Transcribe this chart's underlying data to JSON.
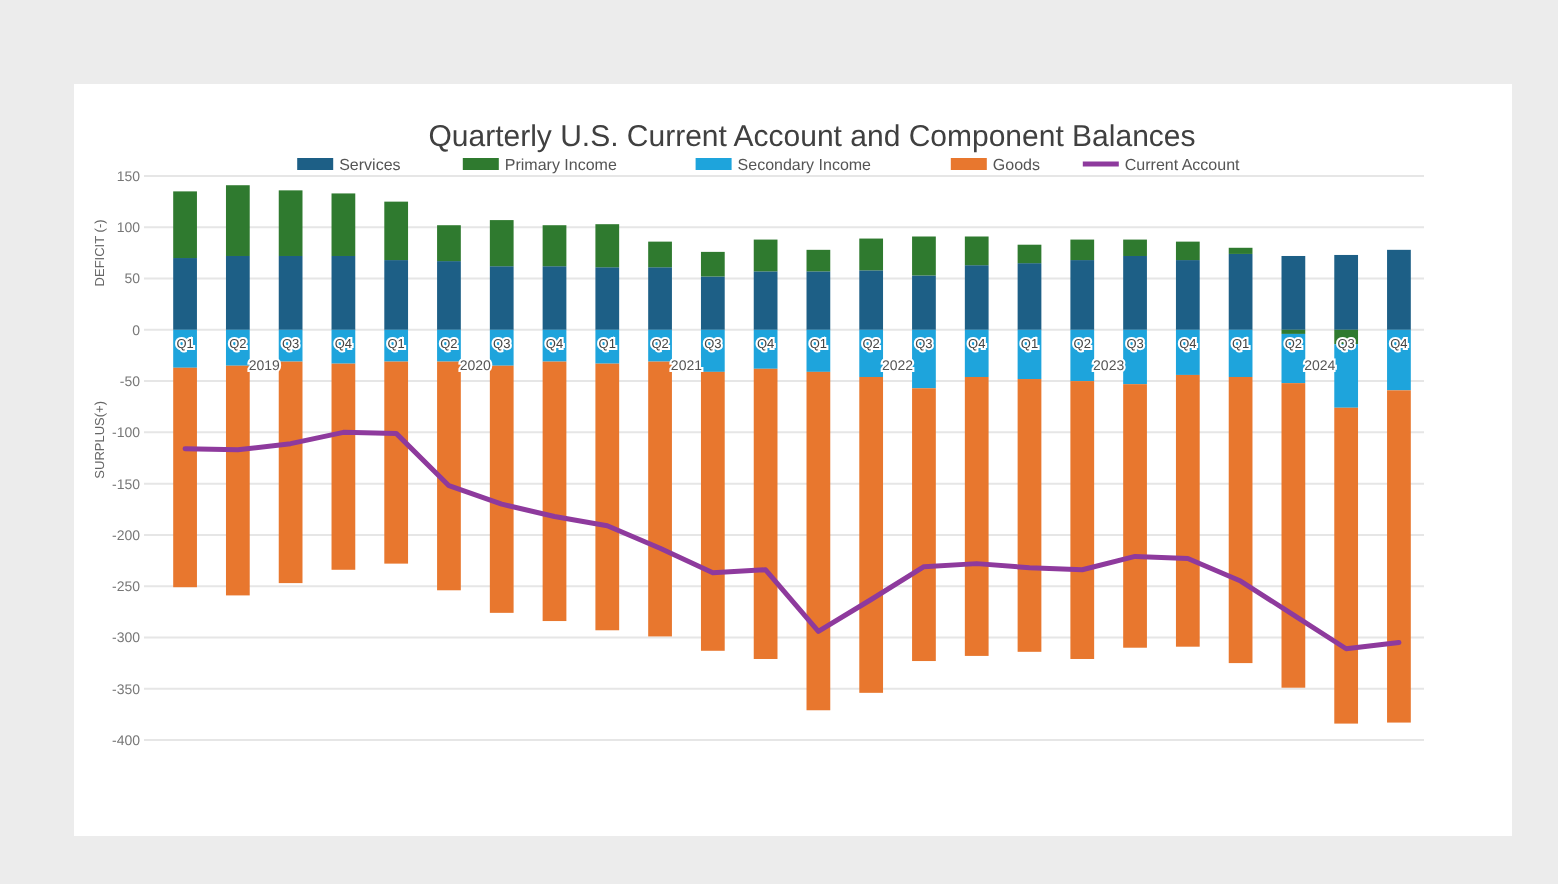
{
  "chart_data": {
    "type": "bar",
    "stacked": true,
    "title": "Quarterly U.S. Current Account and Component Balances",
    "ylabel": "DEFICIT (-)",
    "annotations": [
      "2019",
      "2020",
      "2021",
      "2022",
      "2023",
      "2024",
      "SURPLUS(+)"
    ],
    "categories": [
      "Q1",
      "Q2",
      "Q3",
      "Q4",
      "Q1",
      "Q2",
      "Q3",
      "Q4",
      "Q1",
      "Q2",
      "Q3",
      "Q4",
      "Q1",
      "Q2",
      "Q3",
      "Q4",
      "Q1",
      "Q2",
      "Q3",
      "Q4",
      "Q1",
      "Q2",
      "Q3",
      "Q4"
    ],
    "series": [
      {
        "name": "Services",
        "color": "#1d5f86",
        "values": [
          70,
          72,
          72,
          72,
          68,
          67,
          62,
          62,
          61,
          61,
          52,
          57,
          57,
          58,
          53,
          63,
          65,
          68,
          72,
          68,
          74,
          72,
          73,
          78
        ]
      },
      {
        "name": "Primary Income",
        "color": "#2f7a2f",
        "values": [
          65,
          69,
          64,
          61,
          57,
          35,
          45,
          40,
          42,
          25,
          24,
          31,
          21,
          31,
          38,
          28,
          18,
          20,
          16,
          18,
          6,
          -4,
          -14,
          0
        ]
      },
      {
        "name": "Secondary Income",
        "color": "#1ea4dc",
        "values": [
          -37,
          -35,
          -31,
          -33,
          -31,
          -31,
          -35,
          -31,
          -33,
          -31,
          -41,
          -38,
          -41,
          -46,
          -57,
          -46,
          -48,
          -50,
          -53,
          -44,
          -46,
          -48,
          -62,
          -59
        ]
      },
      {
        "name": "Goods",
        "color": "#e8772e",
        "values": [
          -214,
          -224,
          -216,
          -201,
          -197,
          -223,
          -241,
          -253,
          -260,
          -268,
          -272,
          -283,
          -330,
          -308,
          -266,
          -272,
          -266,
          -271,
          -257,
          -265,
          -279,
          -297,
          -308,
          -324
        ]
      },
      {
        "name": "Current Account",
        "type": "line",
        "color": "#8e3a9d",
        "values": [
          -116,
          -117,
          -111,
          -100,
          -101,
          -152,
          -170,
          -182,
          -191,
          -213,
          -237,
          -234,
          -294,
          -263,
          -231,
          -228,
          -232,
          -234,
          -221,
          -223,
          -245,
          -278,
          -311,
          -305
        ]
      }
    ],
    "ylim": [
      -400,
      150
    ],
    "yticks": [
      -400,
      -350,
      -300,
      -250,
      -200,
      -150,
      -100,
      -50,
      0,
      50,
      100,
      150
    ],
    "grid": "y",
    "legend": "top",
    "marker": "none",
    "line_style": "solid"
  }
}
